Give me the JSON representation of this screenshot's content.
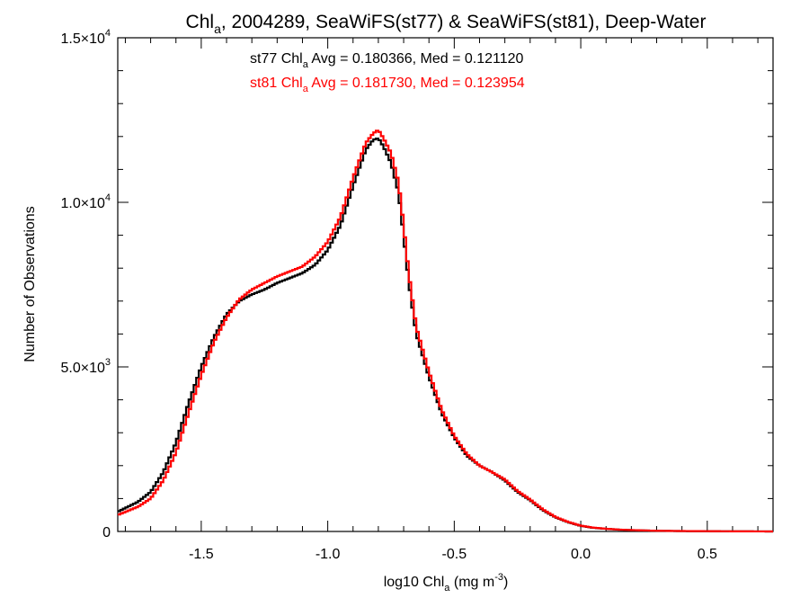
{
  "chart_data": {
    "type": "line",
    "title_parts": {
      "pre": "Chl",
      "sub": "a",
      "post": ", 2004289, SeaWiFS(st77) & SeaWiFS(st81), Deep-Water"
    },
    "xlabel_parts": {
      "pre": "log10 Chl",
      "sub": "a",
      "mid": " (mg m",
      "sup": "-3",
      "post": ")"
    },
    "ylabel": "Number of Observations",
    "xlim": [
      -1.83,
      0.76
    ],
    "ylim": [
      0,
      15000
    ],
    "x_ticks": [
      {
        "v": -1.5,
        "label": "-1.5"
      },
      {
        "v": -1.0,
        "label": "-1.0"
      },
      {
        "v": -0.5,
        "label": "-0.5"
      },
      {
        "v": 0.0,
        "label": "0.0"
      },
      {
        "v": 0.5,
        "label": "0.5"
      }
    ],
    "y_ticks": [
      {
        "v": 0,
        "label": "0",
        "exp": ""
      },
      {
        "v": 5000,
        "label": "5.0×10",
        "exp": "3"
      },
      {
        "v": 10000,
        "label": "1.0×10",
        "exp": "4"
      },
      {
        "v": 15000,
        "label": "1.5×10",
        "exp": "4"
      }
    ],
    "annotations": [
      {
        "pre": "st77 Chl",
        "sub": "a",
        "post": " Avg = 0.180366, Med = 0.121120",
        "color": "#000000"
      },
      {
        "pre": "st81 Chl",
        "sub": "a",
        "post": " Avg = 0.181730, Med = 0.123954",
        "color": "#ff0000"
      }
    ],
    "grid": false,
    "series": [
      {
        "color": "#000000",
        "x": [
          -1.83,
          -1.75,
          -1.7,
          -1.65,
          -1.6,
          -1.55,
          -1.5,
          -1.45,
          -1.4,
          -1.35,
          -1.3,
          -1.25,
          -1.2,
          -1.15,
          -1.1,
          -1.05,
          -1.0,
          -0.95,
          -0.9,
          -0.85,
          -0.82,
          -0.8,
          -0.78,
          -0.75,
          -0.72,
          -0.7,
          -0.68,
          -0.65,
          -0.6,
          -0.55,
          -0.5,
          -0.45,
          -0.4,
          -0.35,
          -0.3,
          -0.25,
          -0.2,
          -0.15,
          -0.1,
          -0.05,
          0.0,
          0.05,
          0.1,
          0.15,
          0.2,
          0.3,
          0.4,
          0.5,
          0.6,
          0.7,
          0.76
        ],
        "y": [
          600,
          900,
          1200,
          1800,
          2700,
          3900,
          5000,
          5900,
          6600,
          7000,
          7200,
          7350,
          7550,
          7700,
          7850,
          8100,
          8550,
          9300,
          10500,
          11600,
          11900,
          11950,
          11700,
          11200,
          10300,
          9000,
          7600,
          6000,
          4700,
          3600,
          2850,
          2300,
          2000,
          1800,
          1550,
          1200,
          950,
          650,
          430,
          280,
          170,
          110,
          80,
          55,
          40,
          20,
          12,
          8,
          4,
          2,
          0
        ]
      },
      {
        "color": "#ff0000",
        "x": [
          -1.83,
          -1.75,
          -1.7,
          -1.65,
          -1.6,
          -1.55,
          -1.5,
          -1.45,
          -1.4,
          -1.35,
          -1.3,
          -1.25,
          -1.2,
          -1.15,
          -1.1,
          -1.05,
          -1.0,
          -0.95,
          -0.9,
          -0.85,
          -0.82,
          -0.8,
          -0.78,
          -0.75,
          -0.72,
          -0.7,
          -0.68,
          -0.65,
          -0.6,
          -0.55,
          -0.5,
          -0.45,
          -0.4,
          -0.35,
          -0.3,
          -0.25,
          -0.2,
          -0.15,
          -0.1,
          -0.05,
          0.0,
          0.05,
          0.1,
          0.15,
          0.2,
          0.3,
          0.4,
          0.5,
          0.6,
          0.7,
          0.76
        ],
        "y": [
          500,
          750,
          1000,
          1550,
          2400,
          3600,
          4750,
          5750,
          6500,
          7050,
          7350,
          7550,
          7750,
          7900,
          8050,
          8350,
          8800,
          9550,
          10750,
          11800,
          12100,
          12200,
          11950,
          11500,
          10600,
          9300,
          7850,
          6200,
          4850,
          3700,
          2900,
          2350,
          2000,
          1800,
          1580,
          1230,
          970,
          670,
          440,
          290,
          175,
          115,
          82,
          57,
          42,
          21,
          13,
          8,
          4,
          2,
          0
        ]
      }
    ]
  }
}
